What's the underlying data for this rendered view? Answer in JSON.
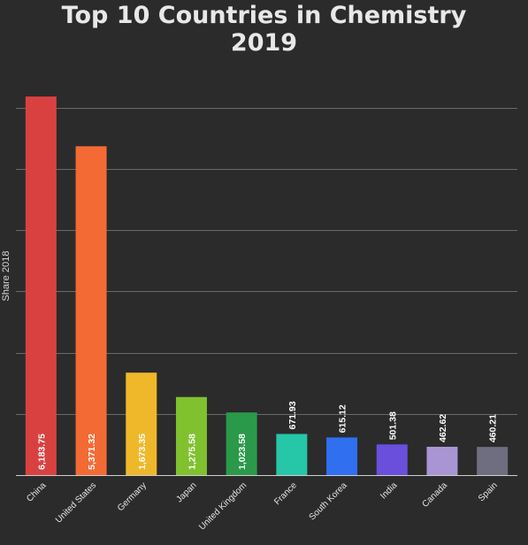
{
  "chart_data": {
    "type": "bar",
    "title_lines": [
      "Top 10 Countries in Chemistry",
      "2019"
    ],
    "xlabel": "",
    "ylabel": "Share 2018",
    "categories": [
      "China",
      "United States",
      "Germany",
      "Japan",
      "United Kingdom",
      "France",
      "South Korea",
      "India",
      "Canada",
      "Spain"
    ],
    "values": [
      6183.75,
      5371.32,
      1673.35,
      1275.58,
      1023.58,
      671.93,
      615.12,
      501.38,
      462.62,
      460.21
    ],
    "value_labels": [
      "6,183.75",
      "5,371.32",
      "1,673.35",
      "1,275.58",
      "1,023.58",
      "671.93",
      "615.12",
      "501.38",
      "462.62",
      "460.21"
    ],
    "colors": [
      "#d94141",
      "#f46a34",
      "#efb82b",
      "#80c12e",
      "#2a9a4a",
      "#26c6a8",
      "#2f6ff0",
      "#6a4fdc",
      "#a995d3",
      "#6e6e80"
    ],
    "ylim": [
      0,
      7000
    ],
    "y_gridlines": [
      1000,
      2000,
      3000,
      4000,
      5000,
      6000
    ],
    "y_tick_labels_shown": false,
    "grid": true,
    "legend": "none"
  }
}
